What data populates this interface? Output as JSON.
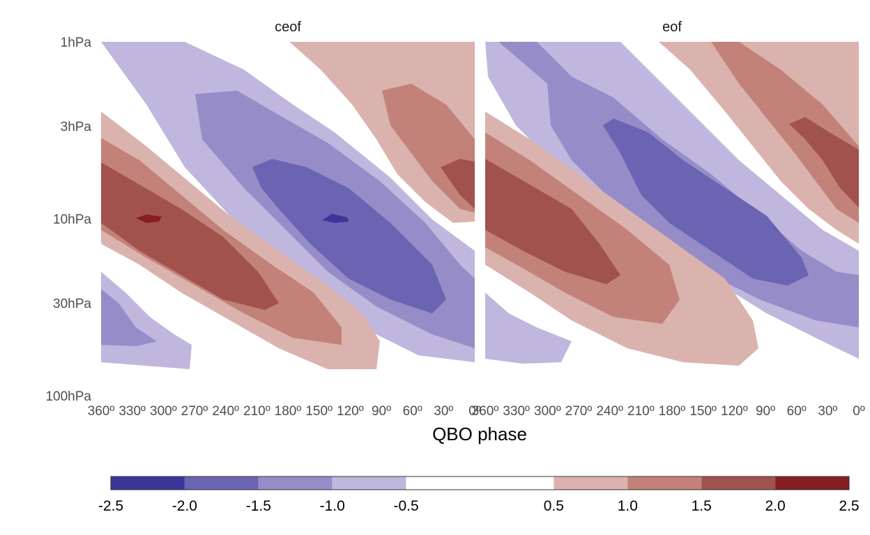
{
  "chart_data": {
    "type": "heatmap",
    "xlabel": "QBO phase",
    "y_ticks": [
      "1hPa",
      "3hPa",
      "10hPa",
      "30hPa",
      "100hPa"
    ],
    "x_ticks": [
      "360º",
      "330º",
      "300º",
      "270º",
      "240º",
      "210º",
      "180º",
      "150º",
      "120º",
      "90º",
      "60º",
      "30º",
      "0º"
    ],
    "x_range": [
      360,
      0
    ],
    "y_range": [
      "1hPa",
      "100hPa"
    ],
    "y_scale": "log",
    "colorbar": {
      "placement": "bottom",
      "ticks": [
        "-2.5",
        "-2.0",
        "-1.5",
        "-1.0",
        "-0.5",
        "0.5",
        "1.0",
        "1.5",
        "2.0",
        "2.5"
      ],
      "levels": [
        -2.5,
        -2.0,
        -1.5,
        -1.0,
        -0.5,
        0.5,
        1.0,
        1.5,
        2.0,
        2.5
      ],
      "colors": [
        "#3b3699",
        "#6b64b2",
        "#968dc8",
        "#bfb7dd",
        "#ffffff",
        "#dbb3ae",
        "#c2827a",
        "#a2524c",
        "#861f22"
      ]
    },
    "panels": [
      {
        "title": "ceof"
      },
      {
        "title": "eof"
      }
    ]
  }
}
